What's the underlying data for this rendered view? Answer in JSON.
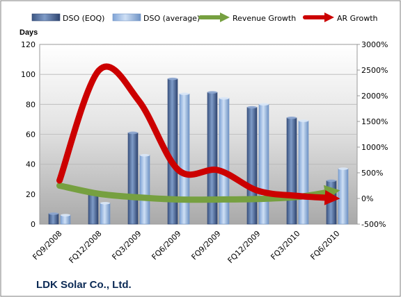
{
  "chart_data": {
    "type": "bar",
    "categories": [
      "FQ9/2008",
      "FQ12/2008",
      "FQ3/2009",
      "FQ6/2009",
      "FQ9/2009",
      "FQ12/2009",
      "FQ3/2010",
      "FQ6/2010"
    ],
    "series": [
      {
        "name": "DSO (EOQ)",
        "type": "bar",
        "axis": "left",
        "values": [
          7,
          20,
          61,
          97,
          88,
          78,
          71,
          29
        ],
        "color": "#4f6b9a"
      },
      {
        "name": "DSO (average)",
        "type": "bar",
        "axis": "left",
        "values": [
          6,
          14,
          46,
          87,
          84,
          80,
          69,
          37
        ],
        "color": "#9dbbe3"
      },
      {
        "name": "Revenue Growth",
        "type": "line",
        "axis": "right",
        "values": [
          250,
          90,
          20,
          -20,
          -20,
          -10,
          30,
          150
        ],
        "color": "#76a040"
      },
      {
        "name": "AR Growth",
        "type": "line",
        "axis": "right",
        "values": [
          350,
          2500,
          1900,
          550,
          550,
          150,
          50,
          0
        ],
        "color": "#cc0000"
      }
    ],
    "ylabel": "Days",
    "ylim": [
      0,
      120
    ],
    "yticks": [
      0,
      20,
      40,
      60,
      80,
      100,
      120
    ],
    "y2lim": [
      -500,
      3000
    ],
    "y2ticks": [
      "-500%",
      "0%",
      "500%",
      "1000%",
      "1500%",
      "2000%",
      "2500%",
      "3000%"
    ],
    "legend_position": "top",
    "grid": true,
    "title": "",
    "footer": "LDK Solar Co., Ltd."
  }
}
